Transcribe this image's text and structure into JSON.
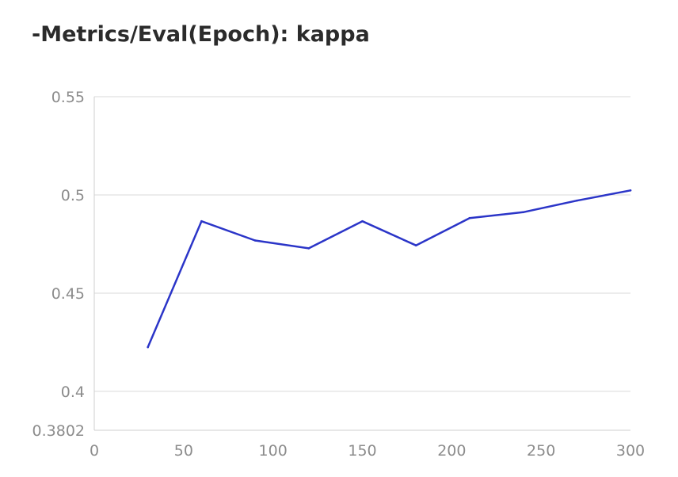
{
  "chart_data": {
    "type": "line",
    "title": "-Metrics/Eval(Epoch): kappa",
    "xlabel": "",
    "ylabel": "",
    "xlim": [
      0,
      300
    ],
    "ylim": [
      0.3802,
      0.55
    ],
    "x_ticks": [
      0,
      50,
      100,
      150,
      200,
      250,
      300
    ],
    "y_ticks": [
      0.3802,
      0.4,
      0.45,
      0.5,
      0.55
    ],
    "x_tick_labels": [
      "0",
      "50",
      "100",
      "150",
      "200",
      "250",
      "300"
    ],
    "y_tick_labels": [
      "0.3802",
      "0.4",
      "0.45",
      "0.5",
      "0.55"
    ],
    "grid": true,
    "legend": "none",
    "series": [
      {
        "color": "#2b35c8",
        "x": [
          30,
          60,
          90,
          120,
          150,
          180,
          210,
          240,
          270,
          300
        ],
        "values": [
          0.4225,
          0.4866,
          0.4768,
          0.4728,
          0.4866,
          0.4743,
          0.4882,
          0.4912,
          0.4971,
          0.5023
        ]
      }
    ]
  }
}
